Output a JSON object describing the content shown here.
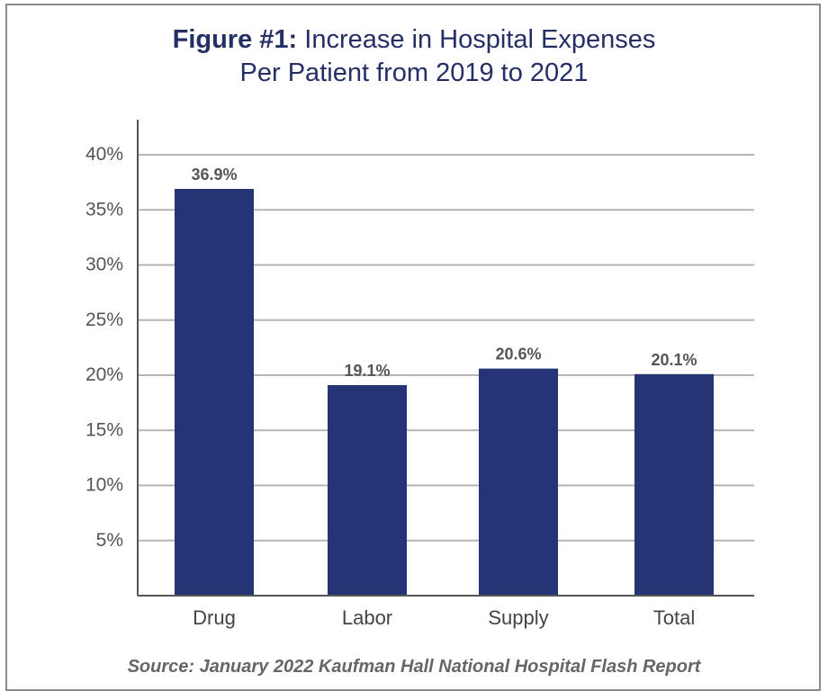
{
  "chart_data": {
    "type": "bar",
    "title_prefix": "Figure #1:",
    "title_line1": "Increase in Hospital Expenses",
    "title_line2": "Per Patient from 2019 to 2021",
    "categories": [
      "Drug",
      "Labor",
      "Supply",
      "Total"
    ],
    "values": [
      36.9,
      19.1,
      20.6,
      20.1
    ],
    "data_labels": [
      "36.9%",
      "19.1%",
      "20.6%",
      "20.1%"
    ],
    "y_ticks": [
      5,
      10,
      15,
      20,
      25,
      30,
      35,
      40
    ],
    "y_tick_labels": [
      "5%",
      "10%",
      "15%",
      "20%",
      "25%",
      "30%",
      "35%",
      "40%"
    ],
    "ylim": [
      0,
      40
    ],
    "grid": true,
    "bar_color": "#253474",
    "xlabel": "",
    "ylabel": ""
  },
  "source": "Source: January 2022 Kaufman Hall National Hospital Flash Report"
}
